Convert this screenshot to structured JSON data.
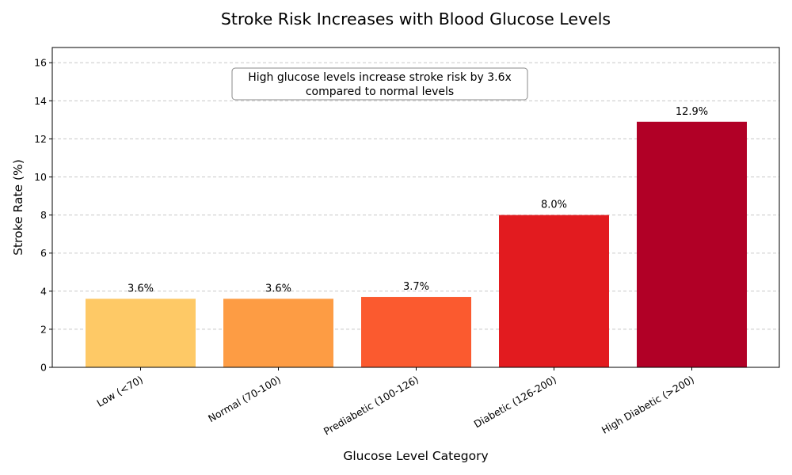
{
  "chart_data": {
    "type": "bar",
    "title": "Stroke Risk Increases with Blood Glucose Levels",
    "xlabel": "Glucose Level Category",
    "ylabel": "Stroke Rate (%)",
    "categories": [
      "Low (<70)",
      "Normal (70-100)",
      "Prediabetic (100-126)",
      "Diabetic (126-200)",
      "High Diabetic (>200)"
    ],
    "values": [
      3.6,
      3.6,
      3.7,
      8.0,
      12.9
    ],
    "value_labels": [
      "3.6%",
      "3.6%",
      "3.7%",
      "8.0%",
      "12.9%"
    ],
    "bar_colors": [
      "#fec966",
      "#fd9c44",
      "#fb5a2f",
      "#e21b1f",
      "#b10026"
    ],
    "ylim": [
      0,
      16.8
    ],
    "yticks": [
      0,
      2,
      4,
      6,
      8,
      10,
      12,
      14,
      16
    ],
    "ytick_labels": [
      "0",
      "2",
      "4",
      "6",
      "8",
      "10",
      "12",
      "14",
      "16"
    ],
    "grid": "y-dashed",
    "annotation": {
      "lines": [
        "High glucose levels increase stroke risk by 3.6x",
        "compared to normal levels"
      ]
    }
  },
  "colors": {
    "grid": "#c8c8c8",
    "axis": "#000000",
    "annotation_border": "#8a8a8a"
  }
}
